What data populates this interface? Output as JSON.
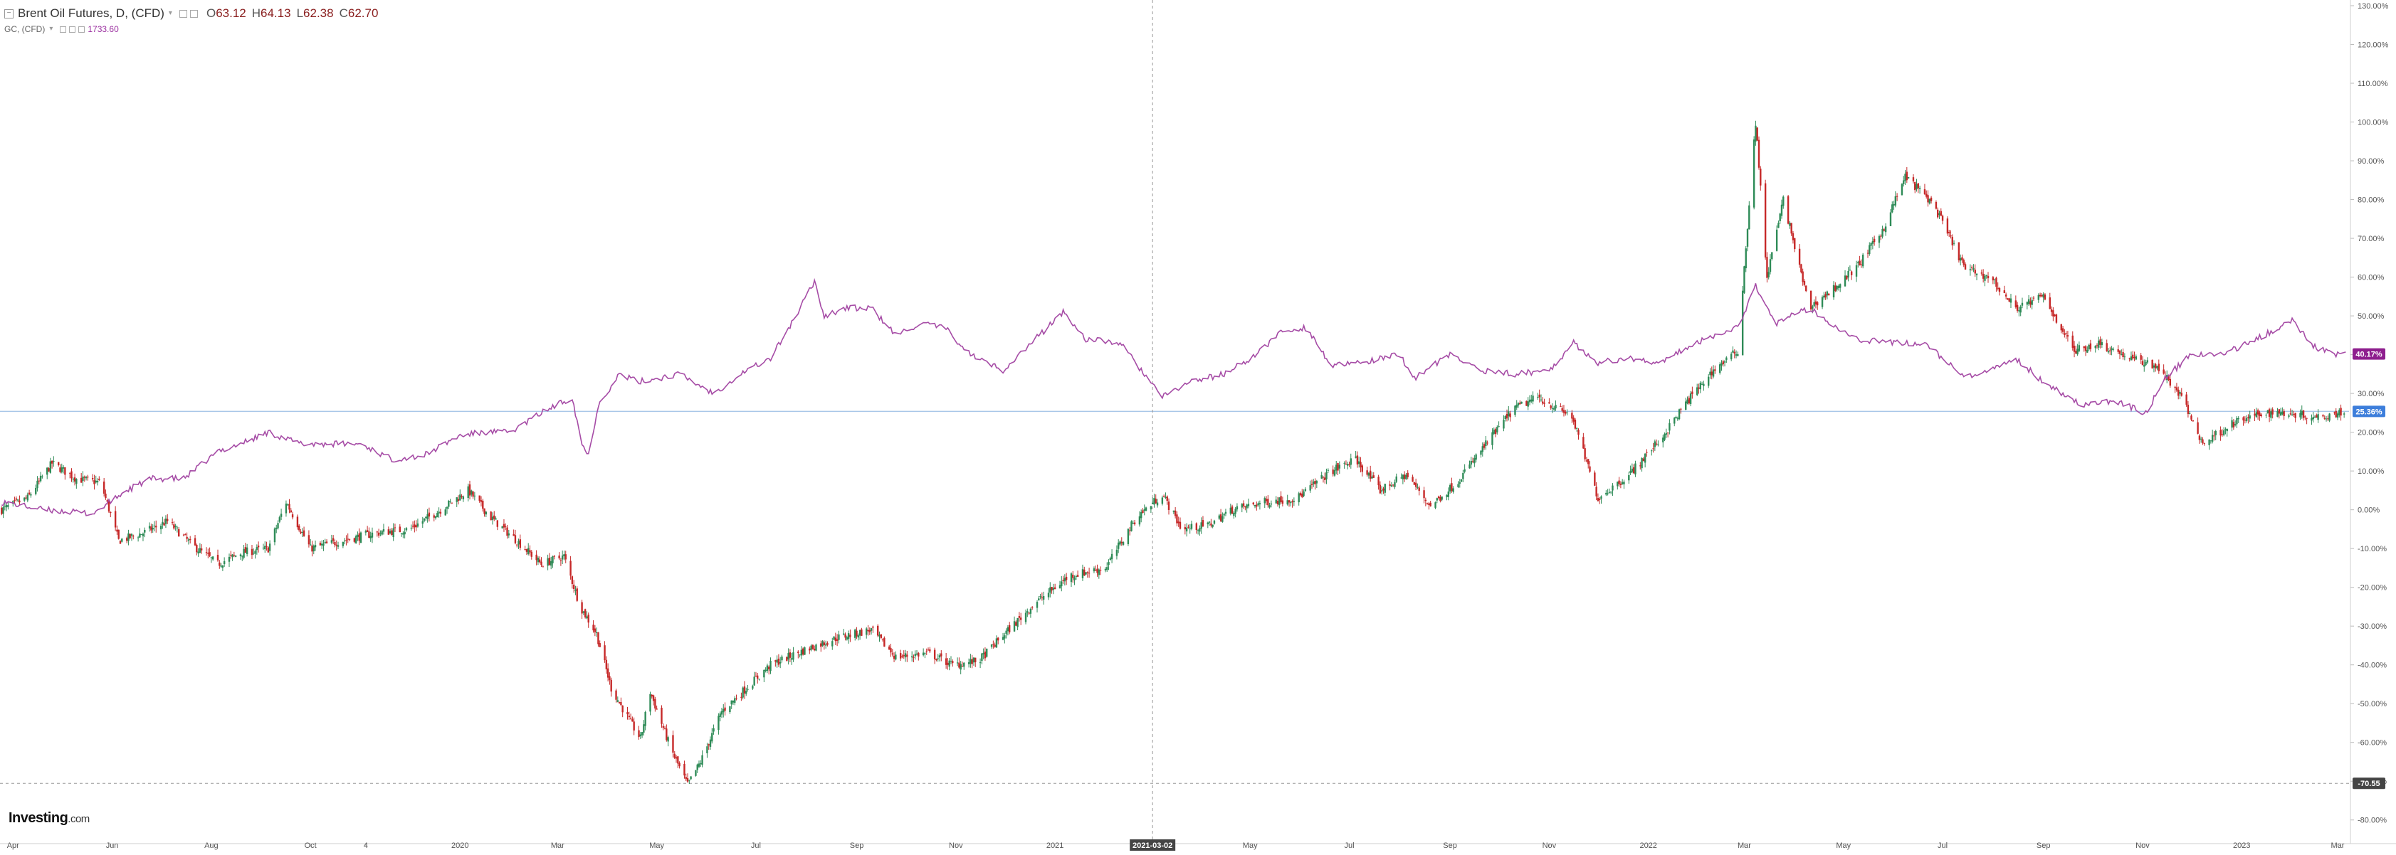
{
  "legend": {
    "main_title": "Brent Oil Futures, D, (CFD)",
    "open_key": "O",
    "open": "63.12",
    "high_key": "H",
    "high": "64.13",
    "low_key": "L",
    "low": "62.38",
    "close_key": "C",
    "close": "62.70",
    "second_title": "GC, (CFD)",
    "second_value": "1733.60"
  },
  "logo": {
    "name": "Investing",
    "suffix": ".com"
  },
  "colors": {
    "up_candle": "#2e8b57",
    "down_candle": "#c62828",
    "compare_line": "#a64ca6",
    "baseline": "#a9c7e8",
    "marker_gc": "#8e1e8e",
    "marker_brent": "#3d7edb",
    "marker_cursor": "#444444"
  },
  "chart_data": {
    "type": "line",
    "title": "Brent Oil Futures, D, (CFD)",
    "y_axis": {
      "unit": "%",
      "range": [
        -85,
        130
      ],
      "ticks": [
        130,
        120,
        110,
        100,
        90,
        80,
        70,
        60,
        50,
        40,
        30,
        20,
        10,
        0,
        -10,
        -20,
        -30,
        -40,
        -50,
        -60,
        -70,
        -80
      ],
      "tick_labels": [
        "130.00%",
        "120.00%",
        "110.00%",
        "100.00%",
        "90.00%",
        "80.00%",
        "70.00%",
        "60.00%",
        "50.00%",
        "40.00%",
        "30.00%",
        "20.00%",
        "10.00%",
        "0.00%",
        "-10.00%",
        "-20.00%",
        "-30.00%",
        "-40.00%",
        "-50.00%",
        "-60.00%",
        "-70.00%",
        "-80.00%"
      ]
    },
    "x_axis": {
      "range": [
        "2019-03-24",
        "2023-03-08"
      ],
      "ticks": [
        {
          "date": "2019-04-01",
          "label": "Apr"
        },
        {
          "date": "2019-06-01",
          "label": "Jun"
        },
        {
          "date": "2019-08-01",
          "label": "Aug"
        },
        {
          "date": "2019-10-01",
          "label": "Oct"
        },
        {
          "date": "2019-11-04",
          "label": "4"
        },
        {
          "date": "2020-01-01",
          "label": "2020"
        },
        {
          "date": "2020-03-01",
          "label": "Mar"
        },
        {
          "date": "2020-05-01",
          "label": "May"
        },
        {
          "date": "2020-07-01",
          "label": "Jul"
        },
        {
          "date": "2020-09-01",
          "label": "Sep"
        },
        {
          "date": "2020-11-01",
          "label": "Nov"
        },
        {
          "date": "2021-01-01",
          "label": "2021"
        },
        {
          "date": "2021-05-01",
          "label": "May"
        },
        {
          "date": "2021-07-01",
          "label": "Jul"
        },
        {
          "date": "2021-09-01",
          "label": "Sep"
        },
        {
          "date": "2021-11-01",
          "label": "Nov"
        },
        {
          "date": "2022-01-01",
          "label": "2022"
        },
        {
          "date": "2022-03-01",
          "label": "Mar"
        },
        {
          "date": "2022-05-01",
          "label": "May"
        },
        {
          "date": "2022-07-01",
          "label": "Jul"
        },
        {
          "date": "2022-09-01",
          "label": "Sep"
        },
        {
          "date": "2022-11-01",
          "label": "Nov"
        },
        {
          "date": "2023-01-01",
          "label": "2023"
        },
        {
          "date": "2023-03-01",
          "label": "Mar"
        }
      ]
    },
    "series": [
      {
        "name": "Brent Oil Futures, D, (CFD)",
        "style": "candlestick",
        "points": [
          [
            "2019-03-25",
            0
          ],
          [
            "2019-04-10",
            3
          ],
          [
            "2019-04-25",
            12
          ],
          [
            "2019-05-10",
            8
          ],
          [
            "2019-05-25",
            7
          ],
          [
            "2019-06-05",
            -8
          ],
          [
            "2019-06-20",
            -6
          ],
          [
            "2019-07-05",
            -3
          ],
          [
            "2019-07-20",
            -9
          ],
          [
            "2019-08-05",
            -14
          ],
          [
            "2019-08-20",
            -11
          ],
          [
            "2019-09-05",
            -10
          ],
          [
            "2019-09-16",
            2
          ],
          [
            "2019-10-01",
            -10
          ],
          [
            "2019-10-20",
            -8
          ],
          [
            "2019-11-10",
            -6
          ],
          [
            "2019-12-01",
            -5
          ],
          [
            "2019-12-20",
            0
          ],
          [
            "2020-01-06",
            5
          ],
          [
            "2020-01-20",
            -2
          ],
          [
            "2020-02-05",
            -8
          ],
          [
            "2020-02-20",
            -14
          ],
          [
            "2020-03-05",
            -12
          ],
          [
            "2020-03-15",
            -25
          ],
          [
            "2020-03-25",
            -32
          ],
          [
            "2020-04-03",
            -46
          ],
          [
            "2020-04-15",
            -55
          ],
          [
            "2020-04-21",
            -59
          ],
          [
            "2020-04-27",
            -47
          ],
          [
            "2020-05-10",
            -62
          ],
          [
            "2020-05-20",
            -71
          ],
          [
            "2020-05-28",
            -65
          ],
          [
            "2020-06-10",
            -52
          ],
          [
            "2020-06-25",
            -46
          ],
          [
            "2020-07-10",
            -40
          ],
          [
            "2020-08-01",
            -36
          ],
          [
            "2020-08-20",
            -33
          ],
          [
            "2020-09-10",
            -31
          ],
          [
            "2020-09-25",
            -38
          ],
          [
            "2020-10-15",
            -37
          ],
          [
            "2020-10-30",
            -40
          ],
          [
            "2020-11-15",
            -39
          ],
          [
            "2020-12-01",
            -32
          ],
          [
            "2020-12-20",
            -24
          ],
          [
            "2021-01-10",
            -17
          ],
          [
            "2021-02-01",
            -15
          ],
          [
            "2021-02-20",
            -2
          ],
          [
            "2021-03-08",
            4
          ],
          [
            "2021-03-20",
            -5
          ],
          [
            "2021-04-05",
            -4
          ],
          [
            "2021-04-20",
            0
          ],
          [
            "2021-05-10",
            2
          ],
          [
            "2021-05-30",
            3
          ],
          [
            "2021-06-20",
            10
          ],
          [
            "2021-07-05",
            13
          ],
          [
            "2021-07-20",
            5
          ],
          [
            "2021-08-05",
            9
          ],
          [
            "2021-08-20",
            1
          ],
          [
            "2021-09-05",
            7
          ],
          [
            "2021-09-25",
            18
          ],
          [
            "2021-10-10",
            26
          ],
          [
            "2021-10-25",
            29
          ],
          [
            "2021-11-15",
            24
          ],
          [
            "2021-12-01",
            3
          ],
          [
            "2021-12-20",
            9
          ],
          [
            "2022-01-10",
            19
          ],
          [
            "2022-01-25",
            28
          ],
          [
            "2022-02-10",
            36
          ],
          [
            "2022-02-25",
            41
          ],
          [
            "2022-03-08",
            100
          ],
          [
            "2022-03-15",
            60
          ],
          [
            "2022-03-25",
            80
          ],
          [
            "2022-04-10",
            52
          ],
          [
            "2022-04-25",
            57
          ],
          [
            "2022-05-10",
            63
          ],
          [
            "2022-05-25",
            72
          ],
          [
            "2022-06-08",
            86
          ],
          [
            "2022-06-25",
            79
          ],
          [
            "2022-07-15",
            62
          ],
          [
            "2022-07-30",
            60
          ],
          [
            "2022-08-15",
            52
          ],
          [
            "2022-09-01",
            55
          ],
          [
            "2022-09-20",
            41
          ],
          [
            "2022-10-05",
            43
          ],
          [
            "2022-10-25",
            39
          ],
          [
            "2022-11-10",
            37
          ],
          [
            "2022-11-25",
            29
          ],
          [
            "2022-12-08",
            17
          ],
          [
            "2022-12-25",
            22
          ],
          [
            "2023-01-15",
            25
          ],
          [
            "2023-01-30",
            25
          ],
          [
            "2023-02-15",
            24
          ],
          [
            "2023-03-05",
            25.36
          ]
        ]
      },
      {
        "name": "GC, (CFD)",
        "style": "line",
        "points": [
          [
            "2019-03-25",
            2
          ],
          [
            "2019-04-20",
            0
          ],
          [
            "2019-05-20",
            -1
          ],
          [
            "2019-06-10",
            5
          ],
          [
            "2019-06-25",
            8
          ],
          [
            "2019-07-15",
            8
          ],
          [
            "2019-08-05",
            15
          ],
          [
            "2019-08-25",
            18
          ],
          [
            "2019-09-05",
            20
          ],
          [
            "2019-09-25",
            17
          ],
          [
            "2019-10-10",
            17
          ],
          [
            "2019-11-01",
            17
          ],
          [
            "2019-11-20",
            13
          ],
          [
            "2019-12-10",
            14
          ],
          [
            "2019-12-31",
            19
          ],
          [
            "2020-01-15",
            20
          ],
          [
            "2020-02-01",
            20
          ],
          [
            "2020-02-20",
            25
          ],
          [
            "2020-03-05",
            28
          ],
          [
            "2020-03-10",
            29
          ],
          [
            "2020-03-16",
            17
          ],
          [
            "2020-03-20",
            14
          ],
          [
            "2020-03-26",
            27
          ],
          [
            "2020-04-08",
            35
          ],
          [
            "2020-04-20",
            33
          ],
          [
            "2020-05-15",
            35
          ],
          [
            "2020-06-05",
            30
          ],
          [
            "2020-06-25",
            36
          ],
          [
            "2020-07-10",
            39
          ],
          [
            "2020-07-27",
            51
          ],
          [
            "2020-08-06",
            59
          ],
          [
            "2020-08-12",
            50
          ],
          [
            "2020-08-25",
            52
          ],
          [
            "2020-09-10",
            52
          ],
          [
            "2020-09-25",
            45
          ],
          [
            "2020-10-10",
            48
          ],
          [
            "2020-10-25",
            47
          ],
          [
            "2020-11-10",
            40
          ],
          [
            "2020-11-30",
            36
          ],
          [
            "2020-12-15",
            42
          ],
          [
            "2021-01-06",
            51
          ],
          [
            "2021-01-20",
            44
          ],
          [
            "2021-02-10",
            43
          ],
          [
            "2021-02-25",
            35
          ],
          [
            "2021-03-08",
            29
          ],
          [
            "2021-03-25",
            33
          ],
          [
            "2021-04-15",
            35
          ],
          [
            "2021-05-05",
            40
          ],
          [
            "2021-05-20",
            46
          ],
          [
            "2021-06-05",
            47
          ],
          [
            "2021-06-20",
            37
          ],
          [
            "2021-07-10",
            38
          ],
          [
            "2021-08-01",
            40
          ],
          [
            "2021-08-10",
            34
          ],
          [
            "2021-09-01",
            40
          ],
          [
            "2021-09-20",
            36
          ],
          [
            "2021-10-10",
            35
          ],
          [
            "2021-11-01",
            36
          ],
          [
            "2021-11-16",
            43
          ],
          [
            "2021-12-01",
            38
          ],
          [
            "2021-12-20",
            39
          ],
          [
            "2022-01-10",
            38
          ],
          [
            "2022-01-25",
            42
          ],
          [
            "2022-02-10",
            45
          ],
          [
            "2022-02-25",
            47
          ],
          [
            "2022-03-08",
            58
          ],
          [
            "2022-03-20",
            48
          ],
          [
            "2022-04-10",
            52
          ],
          [
            "2022-04-20",
            49
          ],
          [
            "2022-05-10",
            44
          ],
          [
            "2022-06-01",
            43
          ],
          [
            "2022-06-20",
            43
          ],
          [
            "2022-07-15",
            34
          ],
          [
            "2022-08-01",
            36
          ],
          [
            "2022-08-15",
            39
          ],
          [
            "2022-09-01",
            33
          ],
          [
            "2022-09-25",
            27
          ],
          [
            "2022-10-15",
            28
          ],
          [
            "2022-11-03",
            25
          ],
          [
            "2022-11-15",
            34
          ],
          [
            "2022-12-01",
            40
          ],
          [
            "2022-12-20",
            40
          ],
          [
            "2023-01-15",
            45
          ],
          [
            "2023-02-01",
            49
          ],
          [
            "2023-02-15",
            42
          ],
          [
            "2023-03-01",
            40
          ],
          [
            "2023-03-06",
            40.17
          ]
        ]
      }
    ],
    "price_markers": [
      {
        "label": "40.17%",
        "value": 40.17,
        "color_key": "marker_gc"
      },
      {
        "label": "25.36%",
        "value": 25.36,
        "color_key": "marker_brent"
      },
      {
        "label": "-70.55",
        "value": -70.55,
        "color_key": "marker_cursor"
      }
    ],
    "crosshair": {
      "date_label": "2021-03-02",
      "date": "2021-03-02",
      "value": -70.55
    },
    "baseline_value": 25.36,
    "grid": false,
    "legend_position": "top-left"
  }
}
